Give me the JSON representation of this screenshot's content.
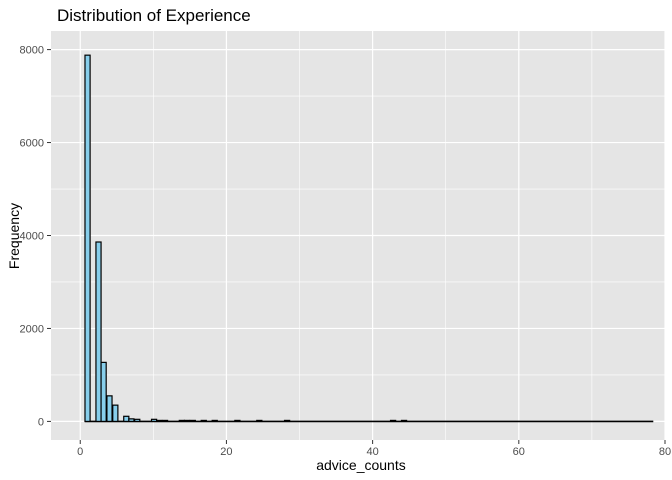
{
  "chart_data": {
    "type": "bar",
    "title": "Distribution of Experience",
    "xlabel": "advice_counts",
    "ylabel": "Frequency",
    "xlim": [
      -4,
      80
    ],
    "ylim": [
      -400,
      8400
    ],
    "x_ticks": [
      0,
      20,
      40,
      60,
      80
    ],
    "y_ticks": [
      0,
      2000,
      4000,
      6000,
      8000
    ],
    "grid": true,
    "legend": "none",
    "bin_width": 0.7,
    "colors": {
      "panel": "#e5e5e5",
      "grid": "#ffffff",
      "fill": "#87ceeb",
      "stroke": "#000000",
      "tick": "#4d4d4d"
    },
    "bins": [
      {
        "x": 1,
        "count": 7880
      },
      {
        "x": 2.5,
        "count": 3860
      },
      {
        "x": 3.2,
        "count": 1270
      },
      {
        "x": 4,
        "count": 550
      },
      {
        "x": 4.8,
        "count": 350
      },
      {
        "x": 6.3,
        "count": 110
      },
      {
        "x": 7,
        "count": 55
      },
      {
        "x": 7.8,
        "count": 45
      },
      {
        "x": 10.1,
        "count": 45
      },
      {
        "x": 10.8,
        "count": 20
      },
      {
        "x": 11.6,
        "count": 10
      },
      {
        "x": 13.9,
        "count": 15
      },
      {
        "x": 14.6,
        "count": 10
      },
      {
        "x": 15.4,
        "count": 5
      },
      {
        "x": 16.9,
        "count": 5
      },
      {
        "x": 18.4,
        "count": 5
      },
      {
        "x": 21.5,
        "count": 5
      },
      {
        "x": 24.5,
        "count": 5
      },
      {
        "x": 28.3,
        "count": 5
      },
      {
        "x": 42.8,
        "count": 5
      },
      {
        "x": 44.3,
        "count": 5
      }
    ],
    "baseline_range": [
      0.6,
      78.4
    ]
  }
}
